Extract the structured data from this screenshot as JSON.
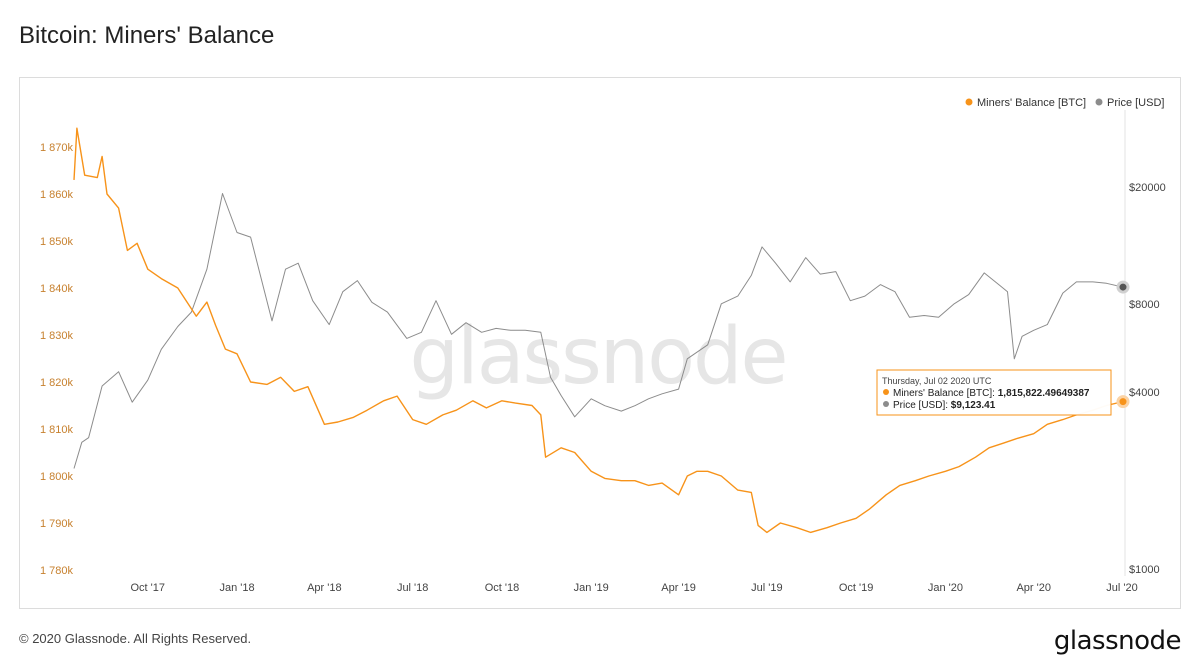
{
  "page": {
    "title": "Bitcoin: Miners' Balance",
    "copyright": "© 2020 Glassnode. All Rights Reserved.",
    "brand": "glassnode",
    "watermark": "glassnode"
  },
  "colors": {
    "miners_balance": "#f7931a",
    "price": "#8c8c8c",
    "left_axis_text": "#c7812f"
  },
  "tooltip": {
    "date": "Thursday, Jul 02 2020 UTC",
    "line1_label": "Miners' Balance [BTC]: ",
    "line1_value": "1,815,822.49649387",
    "line2_label": "Price [USD]: ",
    "line2_value": "$9,123.41"
  },
  "chart_data": {
    "type": "line",
    "title": "Bitcoin: Miners' Balance",
    "legend": {
      "placement": "top-right",
      "entries": [
        "Miners' Balance [BTC]",
        "Price [USD]"
      ]
    },
    "x_ticks": [
      "Oct '17",
      "Jan '18",
      "Apr '18",
      "Jul '18",
      "Oct '18",
      "Jan '19",
      "Apr '19",
      "Jul '19",
      "Oct '19",
      "Jan '20",
      "Apr '20",
      "Jul '20"
    ],
    "x_tick_dates": [
      "2017-10-01",
      "2018-01-01",
      "2018-04-01",
      "2018-07-01",
      "2018-10-01",
      "2019-01-01",
      "2019-04-01",
      "2019-07-01",
      "2019-10-01",
      "2020-01-01",
      "2020-04-01",
      "2020-07-01"
    ],
    "x_range": [
      "2017-07-17",
      "2020-07-02"
    ],
    "left_axis": {
      "label": "",
      "ticks": [
        "1 780k",
        "1 790k",
        "1 800k",
        "1 810k",
        "1 820k",
        "1 830k",
        "1 840k",
        "1 850k",
        "1 860k",
        "1 870k"
      ],
      "tick_values": [
        1780000,
        1790000,
        1800000,
        1810000,
        1820000,
        1830000,
        1840000,
        1850000,
        1860000,
        1870000
      ],
      "range": [
        1780000,
        1870000
      ]
    },
    "right_axis": {
      "label": "",
      "scale": "log",
      "ticks": [
        "$1000",
        "$4000",
        "$8000",
        "$20000"
      ],
      "tick_values": [
        1000,
        4000,
        8000,
        20000
      ],
      "range": [
        1000,
        20000
      ]
    },
    "grid": false,
    "series": [
      {
        "name": "Miners' Balance [BTC]",
        "axis": "left",
        "x": [
          "2017-07-17",
          "2017-07-20",
          "2017-07-28",
          "2017-08-10",
          "2017-08-15",
          "2017-08-20",
          "2017-09-01",
          "2017-09-10",
          "2017-09-20",
          "2017-10-01",
          "2017-10-15",
          "2017-11-01",
          "2017-11-20",
          "2017-12-01",
          "2017-12-10",
          "2017-12-20",
          "2018-01-01",
          "2018-01-15",
          "2018-02-01",
          "2018-02-15",
          "2018-03-01",
          "2018-03-15",
          "2018-04-01",
          "2018-04-15",
          "2018-05-01",
          "2018-05-15",
          "2018-06-01",
          "2018-06-15",
          "2018-07-01",
          "2018-07-15",
          "2018-08-01",
          "2018-08-15",
          "2018-09-01",
          "2018-09-15",
          "2018-10-01",
          "2018-10-15",
          "2018-11-01",
          "2018-11-10",
          "2018-11-15",
          "2018-12-01",
          "2018-12-15",
          "2019-01-01",
          "2019-01-15",
          "2019-02-01",
          "2019-02-15",
          "2019-03-01",
          "2019-03-15",
          "2019-04-01",
          "2019-04-10",
          "2019-04-20",
          "2019-05-01",
          "2019-05-15",
          "2019-06-01",
          "2019-06-15",
          "2019-06-22",
          "2019-07-01",
          "2019-07-15",
          "2019-08-01",
          "2019-08-15",
          "2019-09-01",
          "2019-09-15",
          "2019-10-01",
          "2019-10-15",
          "2019-11-01",
          "2019-11-15",
          "2019-12-01",
          "2019-12-15",
          "2020-01-01",
          "2020-01-15",
          "2020-02-01",
          "2020-02-15",
          "2020-03-01",
          "2020-03-15",
          "2020-04-01",
          "2020-04-15",
          "2020-05-01",
          "2020-05-15",
          "2020-06-01",
          "2020-06-15",
          "2020-07-02"
        ],
        "values": [
          1863000,
          1874000,
          1864000,
          1863500,
          1868000,
          1860000,
          1857000,
          1848000,
          1849500,
          1844000,
          1842000,
          1840000,
          1834000,
          1837000,
          1832000,
          1827000,
          1826000,
          1820000,
          1819500,
          1821000,
          1818000,
          1819000,
          1811000,
          1811500,
          1812500,
          1814000,
          1816000,
          1817000,
          1812000,
          1811000,
          1813000,
          1814000,
          1816000,
          1814500,
          1816000,
          1815500,
          1815000,
          1813000,
          1804000,
          1806000,
          1805000,
          1801000,
          1799500,
          1799000,
          1799000,
          1798000,
          1798500,
          1796000,
          1800000,
          1801000,
          1801000,
          1800000,
          1797000,
          1796500,
          1789500,
          1788000,
          1790000,
          1789000,
          1788000,
          1789000,
          1790000,
          1791000,
          1793000,
          1796000,
          1798000,
          1799000,
          1800000,
          1801000,
          1802000,
          1804000,
          1806000,
          1807000,
          1808000,
          1809000,
          1811000,
          1812000,
          1813000,
          1814000,
          1815000,
          1815822.5
        ]
      },
      {
        "name": "Price [USD]",
        "axis": "right",
        "x": [
          "2017-07-17",
          "2017-07-25",
          "2017-08-01",
          "2017-08-15",
          "2017-09-01",
          "2017-09-15",
          "2017-10-01",
          "2017-10-15",
          "2017-11-01",
          "2017-11-15",
          "2017-12-01",
          "2017-12-17",
          "2018-01-01",
          "2018-01-15",
          "2018-02-06",
          "2018-02-20",
          "2018-03-05",
          "2018-03-20",
          "2018-04-06",
          "2018-04-20",
          "2018-05-05",
          "2018-05-20",
          "2018-06-05",
          "2018-06-25",
          "2018-07-10",
          "2018-07-25",
          "2018-08-10",
          "2018-08-25",
          "2018-09-10",
          "2018-09-25",
          "2018-10-10",
          "2018-10-25",
          "2018-11-10",
          "2018-11-20",
          "2018-12-01",
          "2018-12-15",
          "2019-01-01",
          "2019-01-15",
          "2019-02-01",
          "2019-02-15",
          "2019-03-01",
          "2019-03-15",
          "2019-04-01",
          "2019-04-10",
          "2019-05-01",
          "2019-05-15",
          "2019-06-01",
          "2019-06-15",
          "2019-06-26",
          "2019-07-10",
          "2019-07-25",
          "2019-08-10",
          "2019-08-25",
          "2019-09-10",
          "2019-09-25",
          "2019-10-10",
          "2019-10-26",
          "2019-11-10",
          "2019-11-25",
          "2019-12-10",
          "2019-12-25",
          "2020-01-10",
          "2020-01-25",
          "2020-02-10",
          "2020-02-25",
          "2020-03-05",
          "2020-03-12",
          "2020-03-20",
          "2020-04-01",
          "2020-04-15",
          "2020-05-01",
          "2020-05-15",
          "2020-06-01",
          "2020-06-15",
          "2020-07-02"
        ],
        "values": [
          2200,
          2700,
          2800,
          4200,
          4700,
          3700,
          4400,
          5600,
          6700,
          7500,
          10500,
          19000,
          14000,
          13500,
          7000,
          10500,
          11000,
          8200,
          6800,
          8800,
          9600,
          8100,
          7500,
          6100,
          6400,
          8200,
          6300,
          6900,
          6400,
          6600,
          6500,
          6500,
          6400,
          4500,
          3900,
          3300,
          3800,
          3600,
          3450,
          3600,
          3800,
          3950,
          4100,
          5200,
          5800,
          8000,
          8500,
          10000,
          12500,
          11000,
          9500,
          11500,
          10100,
          10300,
          8200,
          8500,
          9300,
          8800,
          7200,
          7300,
          7200,
          8000,
          8600,
          10200,
          9300,
          8800,
          5200,
          6200,
          6500,
          6800,
          8700,
          9500,
          9500,
          9400,
          9123.41
        ]
      }
    ],
    "highlighted_point": {
      "date": "2020-07-02",
      "miners_balance": 1815822.49649387,
      "price": 9123.41
    }
  }
}
